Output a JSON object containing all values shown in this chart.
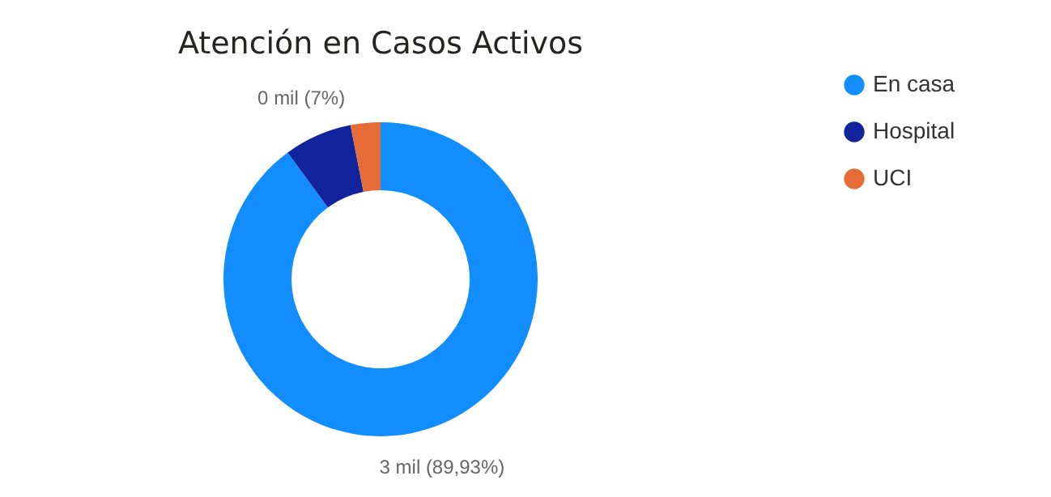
{
  "chart_data": {
    "type": "donut",
    "title": "Atención en Casos Activos",
    "categories": [
      "En casa",
      "Hospital",
      "UCI"
    ],
    "values": [
      89.93,
      7,
      3.07
    ],
    "colors": [
      "#118dff",
      "#12239e",
      "#e66c37"
    ],
    "value_labels": [
      "3 mil (89,93%)",
      "0 mil (7%)",
      null
    ],
    "legend": "right"
  }
}
